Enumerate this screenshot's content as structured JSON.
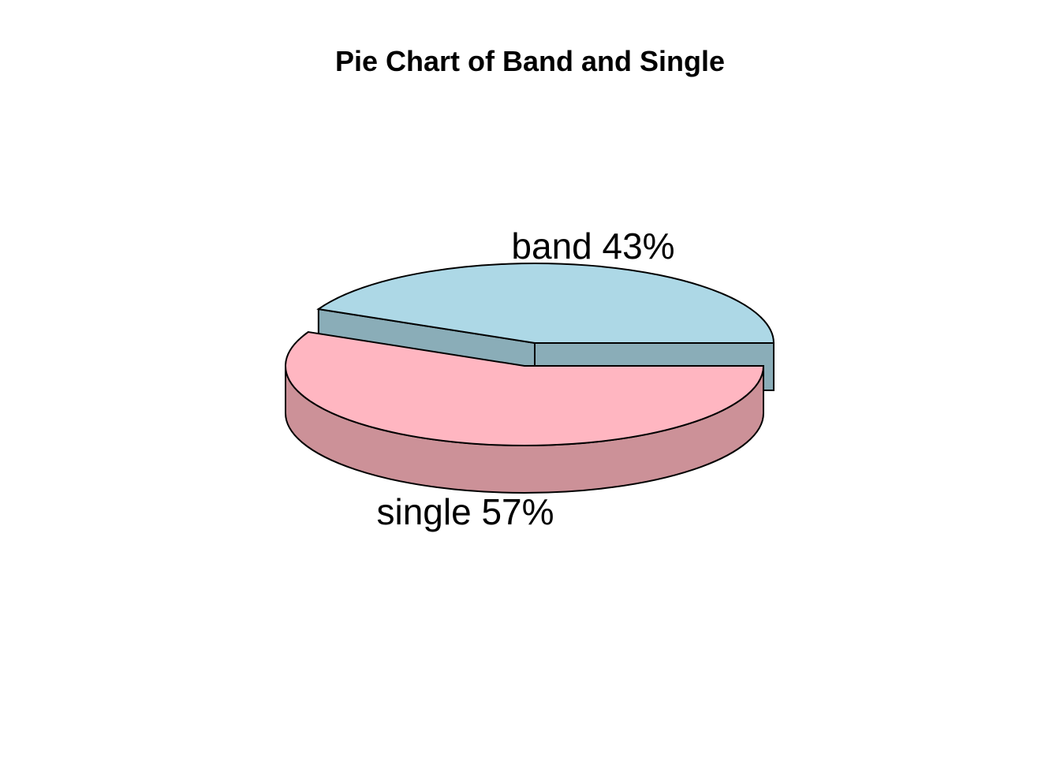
{
  "chart_data": {
    "type": "pie",
    "style": "3d-exploded",
    "title": "Pie Chart of Band and Single",
    "categories": [
      "band",
      "single"
    ],
    "values": [
      43,
      57
    ],
    "labels": [
      "band 43%",
      "single 57%"
    ],
    "colors": {
      "band_top": "#add8e6",
      "band_side": "#8aadb8",
      "single_top": "#ffb6c1",
      "single_side": "#cc9198",
      "outline": "#000000"
    }
  }
}
